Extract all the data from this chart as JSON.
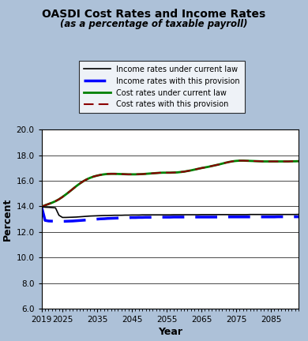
{
  "title1": "OASDI Cost Rates and Income Rates",
  "title2": "(as a percentage of taxable payroll)",
  "xlabel": "Year",
  "ylabel": "Percent",
  "ylim": [
    6.0,
    20.0
  ],
  "xlim": [
    2019,
    2093
  ],
  "yticks": [
    6.0,
    8.0,
    10.0,
    12.0,
    14.0,
    16.0,
    18.0,
    20.0
  ],
  "xticks": [
    2019,
    2025,
    2035,
    2045,
    2055,
    2065,
    2075,
    2085
  ],
  "background_color": "#adc1d8",
  "plot_bg_color": "#ffffff",
  "legend_labels": [
    "Income rates under current law",
    "Income rates with this provision",
    "Cost rates under current law",
    "Cost rates with this provision"
  ],
  "years": [
    2019,
    2020,
    2021,
    2022,
    2023,
    2024,
    2025,
    2026,
    2027,
    2028,
    2029,
    2030,
    2031,
    2032,
    2033,
    2034,
    2035,
    2036,
    2037,
    2038,
    2039,
    2040,
    2041,
    2042,
    2043,
    2044,
    2045,
    2046,
    2047,
    2048,
    2049,
    2050,
    2051,
    2052,
    2053,
    2054,
    2055,
    2056,
    2057,
    2058,
    2059,
    2060,
    2061,
    2062,
    2063,
    2064,
    2065,
    2066,
    2067,
    2068,
    2069,
    2070,
    2071,
    2072,
    2073,
    2074,
    2075,
    2076,
    2077,
    2078,
    2079,
    2080,
    2081,
    2082,
    2083,
    2084,
    2085,
    2086,
    2087,
    2088,
    2089,
    2090,
    2091,
    2092,
    2093
  ],
  "income_current": [
    13.97,
    13.93,
    13.92,
    13.9,
    13.88,
    13.3,
    13.13,
    13.13,
    13.14,
    13.15,
    13.16,
    13.18,
    13.2,
    13.22,
    13.24,
    13.25,
    13.26,
    13.27,
    13.28,
    13.28,
    13.29,
    13.3,
    13.3,
    13.3,
    13.31,
    13.31,
    13.32,
    13.32,
    13.32,
    13.33,
    13.33,
    13.33,
    13.33,
    13.33,
    13.33,
    13.33,
    13.33,
    13.33,
    13.34,
    13.34,
    13.34,
    13.34,
    13.34,
    13.34,
    13.34,
    13.34,
    13.35,
    13.35,
    13.35,
    13.35,
    13.35,
    13.35,
    13.35,
    13.35,
    13.35,
    13.35,
    13.35,
    13.35,
    13.35,
    13.35,
    13.36,
    13.36,
    13.36,
    13.36,
    13.36,
    13.36,
    13.36,
    13.36,
    13.36,
    13.36,
    13.36,
    13.36,
    13.36,
    13.36,
    13.37
  ],
  "income_provision": [
    13.97,
    12.9,
    12.85,
    12.84,
    12.83,
    12.83,
    12.82,
    12.83,
    12.84,
    12.85,
    12.87,
    12.89,
    12.91,
    12.93,
    12.96,
    12.98,
    13.0,
    13.02,
    13.03,
    13.05,
    13.06,
    13.07,
    13.08,
    13.09,
    13.1,
    13.11,
    13.12,
    13.12,
    13.13,
    13.13,
    13.14,
    13.14,
    13.14,
    13.14,
    13.15,
    13.15,
    13.15,
    13.15,
    13.16,
    13.16,
    13.16,
    13.16,
    13.16,
    13.16,
    13.16,
    13.16,
    13.16,
    13.16,
    13.16,
    13.16,
    13.16,
    13.16,
    13.16,
    13.16,
    13.17,
    13.17,
    13.17,
    13.17,
    13.17,
    13.17,
    13.17,
    13.17,
    13.17,
    13.17,
    13.17,
    13.17,
    13.17,
    13.17,
    13.18,
    13.18,
    13.18,
    13.18,
    13.18,
    13.18,
    13.18
  ],
  "cost_current": [
    13.97,
    14.08,
    14.18,
    14.28,
    14.4,
    14.55,
    14.73,
    14.93,
    15.14,
    15.36,
    15.58,
    15.78,
    15.96,
    16.11,
    16.23,
    16.33,
    16.4,
    16.46,
    16.5,
    16.53,
    16.54,
    16.54,
    16.53,
    16.52,
    16.51,
    16.5,
    16.5,
    16.5,
    16.51,
    16.52,
    16.54,
    16.56,
    16.58,
    16.6,
    16.62,
    16.63,
    16.63,
    16.63,
    16.64,
    16.65,
    16.68,
    16.71,
    16.76,
    16.81,
    16.87,
    16.93,
    16.99,
    17.04,
    17.09,
    17.15,
    17.21,
    17.27,
    17.34,
    17.41,
    17.47,
    17.52,
    17.55,
    17.57,
    17.57,
    17.56,
    17.55,
    17.54,
    17.53,
    17.52,
    17.51,
    17.51,
    17.51,
    17.51,
    17.51,
    17.51,
    17.51,
    17.51,
    17.52,
    17.52,
    17.53
  ],
  "cost_provision": [
    13.97,
    14.08,
    14.18,
    14.28,
    14.4,
    14.55,
    14.73,
    14.93,
    15.14,
    15.36,
    15.58,
    15.78,
    15.96,
    16.11,
    16.23,
    16.33,
    16.4,
    16.46,
    16.5,
    16.53,
    16.54,
    16.54,
    16.53,
    16.52,
    16.51,
    16.5,
    16.5,
    16.5,
    16.51,
    16.52,
    16.54,
    16.56,
    16.58,
    16.6,
    16.62,
    16.63,
    16.63,
    16.63,
    16.64,
    16.65,
    16.68,
    16.71,
    16.76,
    16.81,
    16.87,
    16.93,
    16.99,
    17.04,
    17.09,
    17.15,
    17.21,
    17.27,
    17.34,
    17.41,
    17.47,
    17.52,
    17.55,
    17.57,
    17.57,
    17.56,
    17.55,
    17.54,
    17.53,
    17.52,
    17.51,
    17.51,
    17.51,
    17.51,
    17.51,
    17.51,
    17.51,
    17.51,
    17.52,
    17.52,
    17.53
  ]
}
